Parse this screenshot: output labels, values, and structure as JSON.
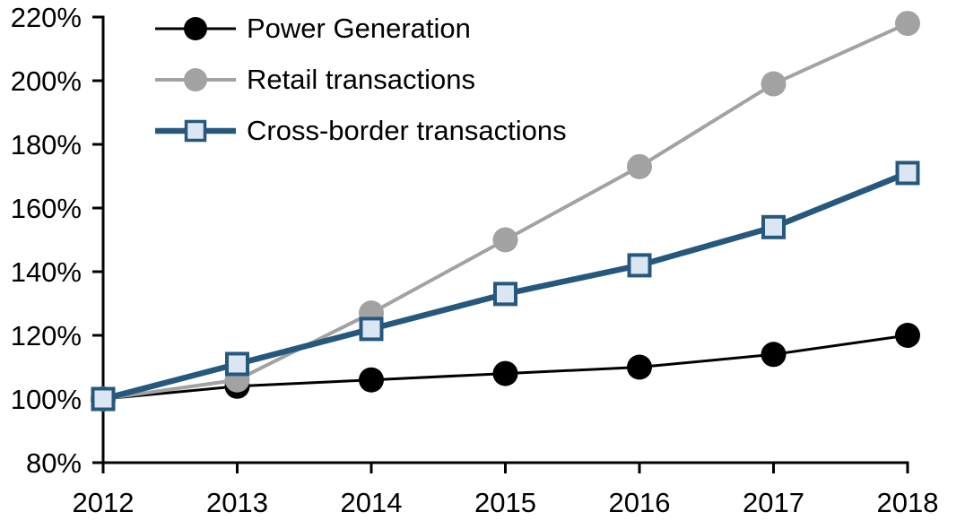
{
  "page": {
    "background": "#FFFFFF"
  },
  "chart_data": {
    "type": "line",
    "title": "",
    "xlabel": "",
    "ylabel": "",
    "categories": [
      "2012",
      "2013",
      "2014",
      "2015",
      "2016",
      "2017",
      "2018"
    ],
    "y_ticks": [
      "80%",
      "100%",
      "120%",
      "140%",
      "160%",
      "180%",
      "200%",
      "220%"
    ],
    "ylim": [
      80,
      220
    ],
    "grid": false,
    "legend_position": "top-left-inside",
    "axis_color": "#000000",
    "series": [
      {
        "name": "Power Generation",
        "values": [
          100,
          104,
          106,
          108,
          110,
          114,
          120
        ],
        "color": "#000000",
        "marker": "circle",
        "marker_fill": "#000000",
        "line_width": 3
      },
      {
        "name": "Retail transactions",
        "values": [
          100,
          106,
          127,
          150,
          173,
          199,
          218
        ],
        "color": "#A2A2A2",
        "marker": "circle",
        "marker_fill": "#A2A2A2",
        "line_width": 4
      },
      {
        "name": "Cross-border transactions",
        "values": [
          100,
          111,
          122,
          133,
          142,
          154,
          171
        ],
        "color": "#26587E",
        "marker": "square",
        "marker_fill": "#DCE6F2",
        "line_width": 6.5
      }
    ]
  }
}
